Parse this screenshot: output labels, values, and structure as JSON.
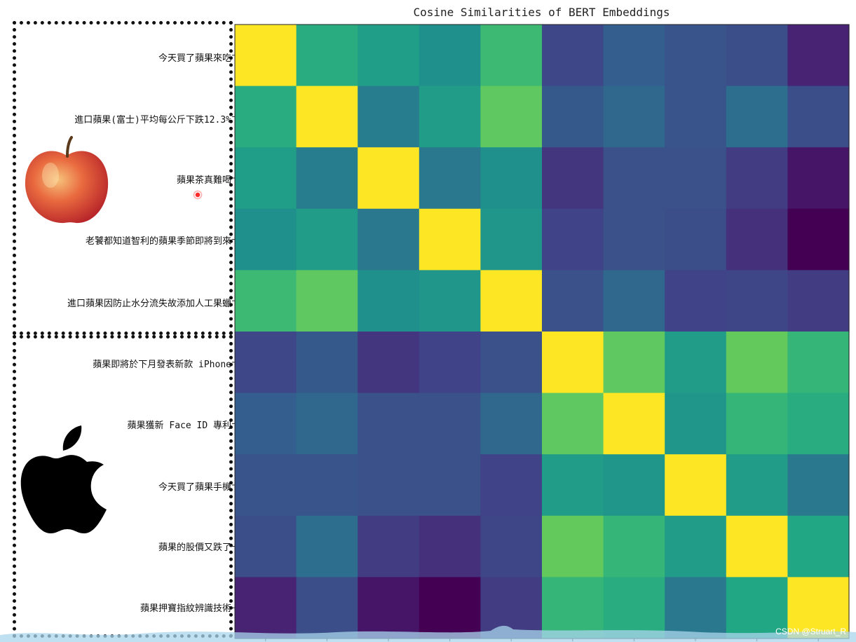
{
  "chart_data": {
    "type": "heatmap",
    "title": "Cosine Similarities of BERT Embeddings",
    "row_labels": [
      "今天買了蘋果來吃",
      "進口蘋果(富士)平均每公斤下跌12.3%",
      "蘋果茶真難喝",
      "老饕都知道智利的蘋果季節即將到來",
      "進口蘋果因防止水分流失故添加人工果蠟",
      "蘋果即將於下月發表新款 iPhone",
      "蘋果獲新 Face ID 專利",
      "今天買了蘋果手機",
      "蘋果的股價又跌了",
      "蘋果押寶指紋辨識技術"
    ],
    "colormap": "viridis",
    "value_range": [
      0,
      1
    ],
    "values": [
      [
        1.0,
        0.62,
        0.56,
        0.5,
        0.68,
        0.22,
        0.3,
        0.26,
        0.24,
        0.1
      ],
      [
        0.62,
        1.0,
        0.42,
        0.55,
        0.75,
        0.28,
        0.34,
        0.26,
        0.36,
        0.24
      ],
      [
        0.56,
        0.42,
        1.0,
        0.4,
        0.5,
        0.16,
        0.25,
        0.25,
        0.18,
        0.06
      ],
      [
        0.5,
        0.55,
        0.4,
        1.0,
        0.52,
        0.2,
        0.25,
        0.24,
        0.14,
        0.0
      ],
      [
        0.68,
        0.75,
        0.5,
        0.52,
        1.0,
        0.25,
        0.34,
        0.2,
        0.21,
        0.18
      ],
      [
        0.22,
        0.28,
        0.16,
        0.2,
        0.25,
        1.0,
        0.75,
        0.55,
        0.76,
        0.66
      ],
      [
        0.3,
        0.34,
        0.25,
        0.25,
        0.34,
        0.75,
        1.0,
        0.52,
        0.66,
        0.62
      ],
      [
        0.26,
        0.26,
        0.25,
        0.25,
        0.2,
        0.55,
        0.52,
        1.0,
        0.55,
        0.4
      ],
      [
        0.24,
        0.36,
        0.18,
        0.14,
        0.21,
        0.76,
        0.66,
        0.55,
        1.0,
        0.6
      ],
      [
        0.1,
        0.24,
        0.06,
        0.0,
        0.18,
        0.66,
        0.62,
        0.4,
        0.6,
        1.0
      ]
    ]
  },
  "icons": {
    "group_top": "red-apple-fruit",
    "group_bottom": "apple-logo"
  },
  "watermark": "CSDN @Struart_R"
}
